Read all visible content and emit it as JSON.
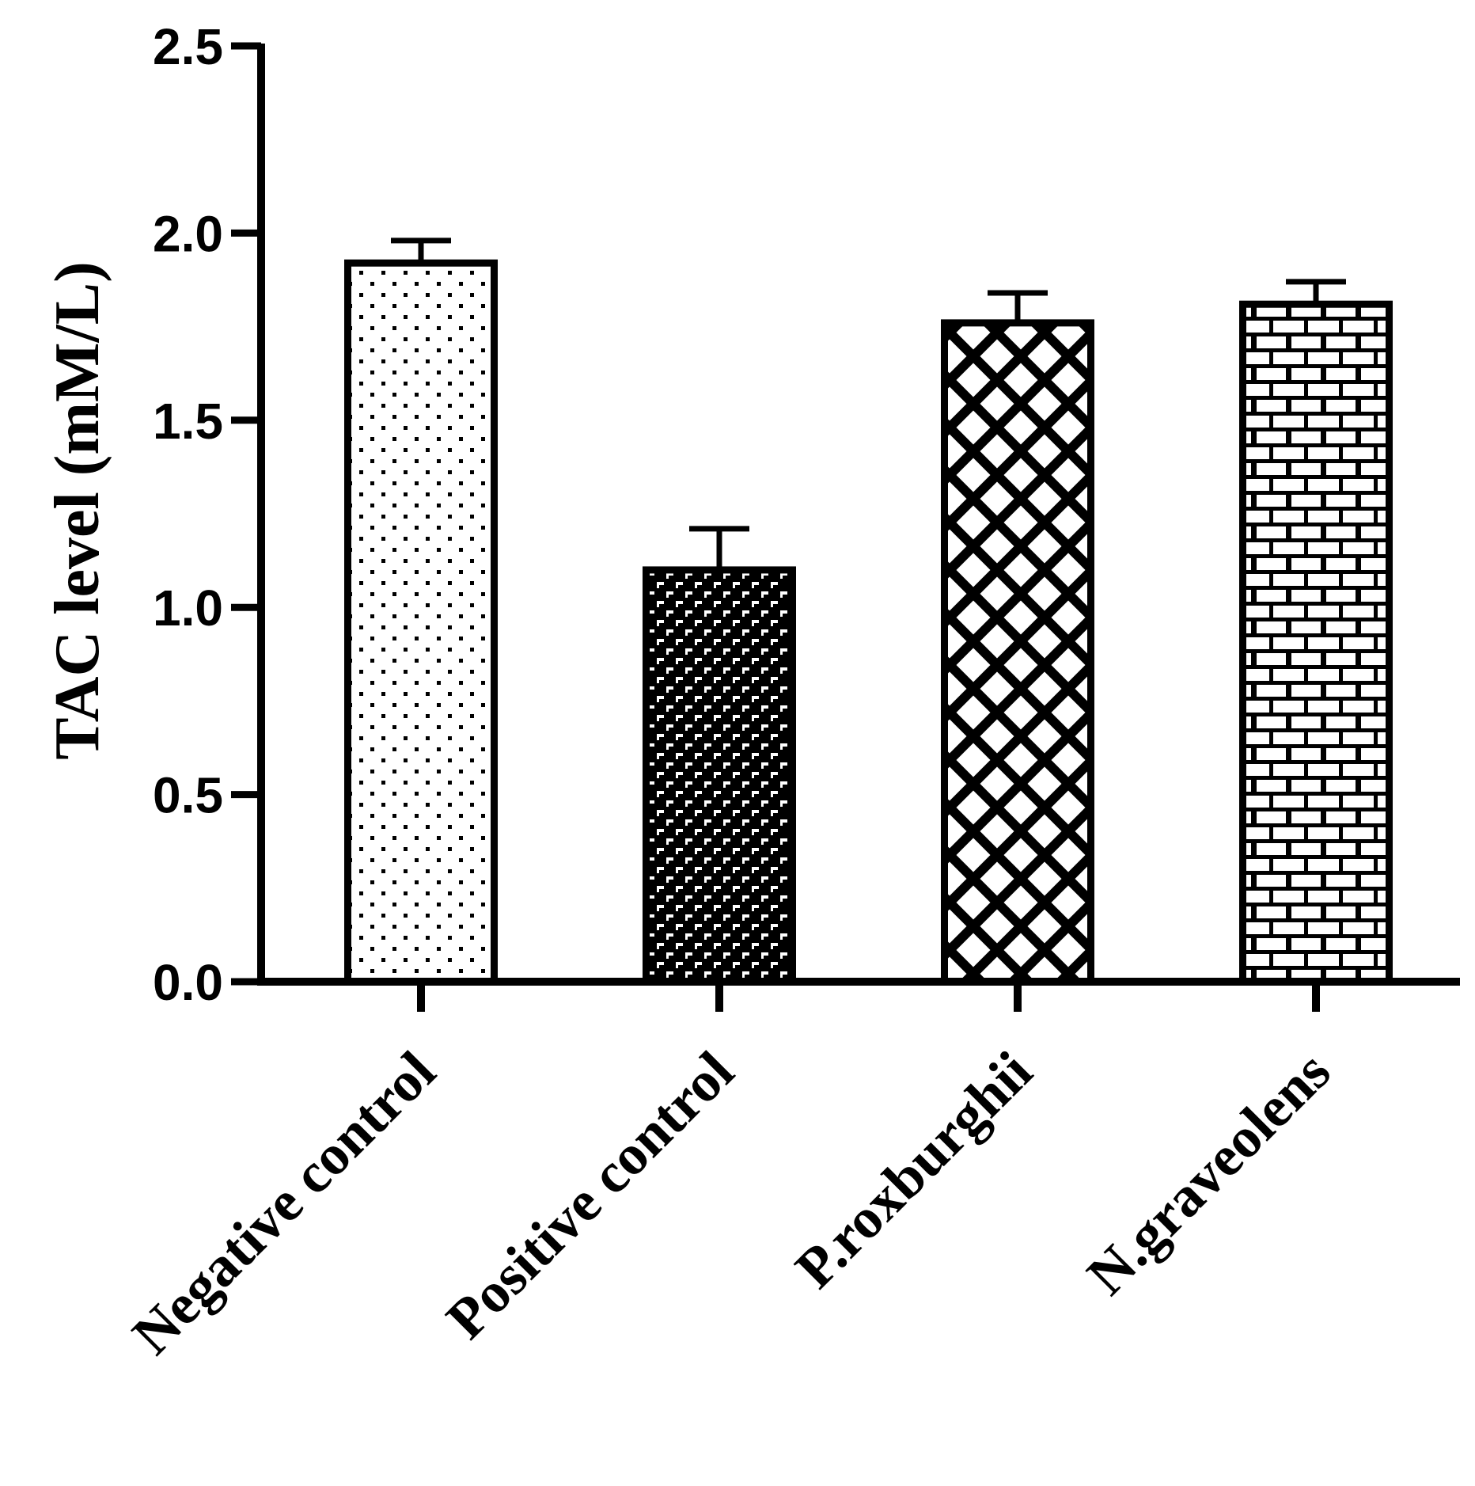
{
  "chart_data": {
    "type": "bar",
    "title": "",
    "xlabel": "",
    "ylabel": "TAC level (mM/L)",
    "ylim": [
      0,
      2.5
    ],
    "yticks": [
      0.0,
      0.5,
      1.0,
      1.5,
      2.0,
      2.5
    ],
    "ytick_labels": [
      "0.0",
      "0.5",
      "1.0",
      "1.5",
      "2.0",
      "2.5"
    ],
    "categories": [
      "Negative control",
      "Positive control",
      "P.roxburghii",
      "N.graveolens"
    ],
    "values": [
      1.92,
      1.1,
      1.76,
      1.81
    ],
    "errors": [
      0.06,
      0.11,
      0.08,
      0.06
    ],
    "patterns": [
      "dots",
      "brick-dense",
      "crosshatch",
      "brick"
    ],
    "grid": false,
    "colors": {
      "ink": "#000000",
      "fill": "#ffffff"
    }
  }
}
